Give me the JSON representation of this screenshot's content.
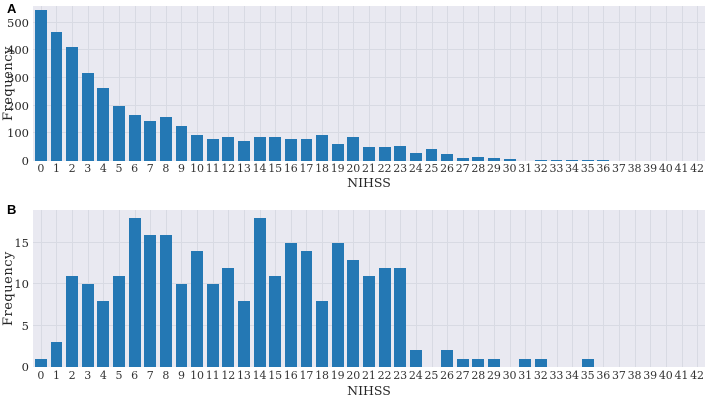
{
  "colors": {
    "bar": "#2478b4",
    "plot_bg": "#e9e9f1",
    "grid": "#d8dae3",
    "text": "#262626"
  },
  "chart_data": [
    {
      "type": "bar",
      "panel_label": "A",
      "title": "",
      "xlabel": "NIHSS",
      "ylabel": "Frequency",
      "categories": [
        "0",
        "1",
        "2",
        "3",
        "4",
        "5",
        "6",
        "7",
        "8",
        "9",
        "10",
        "11",
        "12",
        "13",
        "14",
        "15",
        "16",
        "17",
        "18",
        "19",
        "20",
        "21",
        "22",
        "23",
        "24",
        "25",
        "26",
        "27",
        "28",
        "29",
        "30",
        "31",
        "32",
        "33",
        "34",
        "35",
        "36",
        "37",
        "38",
        "39",
        "40",
        "41",
        "42"
      ],
      "values": [
        545,
        465,
        412,
        318,
        263,
        198,
        165,
        146,
        158,
        127,
        93,
        78,
        86,
        72,
        85,
        86,
        80,
        80,
        95,
        60,
        85,
        52,
        50,
        55,
        30,
        45,
        25,
        10,
        15,
        11,
        8,
        0,
        5,
        5,
        5,
        3,
        5,
        0,
        0,
        0,
        0,
        0,
        0
      ],
      "yticks": [
        0,
        100,
        200,
        300,
        400,
        500
      ],
      "ylim": [
        0,
        560
      ],
      "grid": true,
      "legend": "none"
    },
    {
      "type": "bar",
      "panel_label": "B",
      "title": "",
      "xlabel": "NIHSS",
      "ylabel": "Frequency",
      "categories": [
        "0",
        "1",
        "2",
        "3",
        "4",
        "5",
        "6",
        "7",
        "8",
        "9",
        "10",
        "11",
        "12",
        "13",
        "14",
        "15",
        "16",
        "17",
        "18",
        "19",
        "20",
        "21",
        "22",
        "23",
        "24",
        "25",
        "26",
        "27",
        "28",
        "29",
        "30",
        "31",
        "32",
        "33",
        "34",
        "35",
        "36",
        "37",
        "38",
        "39",
        "40",
        "41",
        "42"
      ],
      "values": [
        1,
        3,
        11,
        10,
        8,
        11,
        18,
        16,
        16,
        10,
        14,
        10,
        12,
        8,
        18,
        11,
        15,
        14,
        8,
        15,
        13,
        11,
        12,
        12,
        2,
        0,
        2,
        1,
        1,
        1,
        0,
        1,
        1,
        0,
        0,
        1,
        0,
        0,
        0,
        0,
        0,
        0,
        0
      ],
      "yticks": [
        0,
        5,
        10,
        15
      ],
      "ylim": [
        0,
        19
      ],
      "grid": true,
      "legend": "none"
    }
  ]
}
